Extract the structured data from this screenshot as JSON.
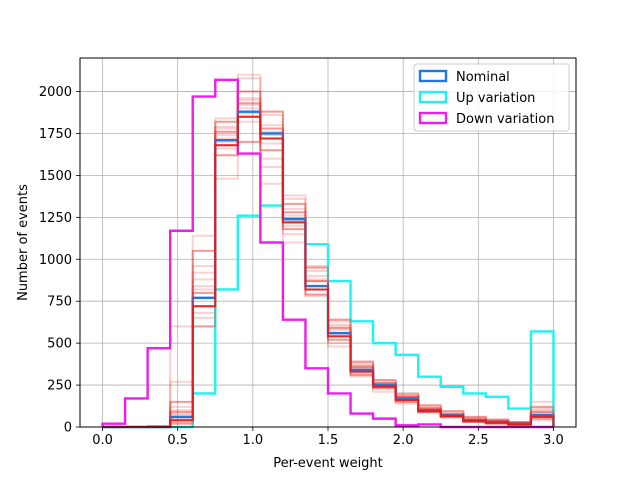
{
  "chart_data": {
    "type": "histogram-step",
    "xlabel": "Per-event weight",
    "ylabel": "Number of events",
    "xlim": [
      -0.15,
      3.15
    ],
    "ylim": [
      0,
      2200
    ],
    "x_ticks": [
      0.0,
      0.5,
      1.0,
      1.5,
      2.0,
      2.5,
      3.0
    ],
    "x_tick_labels": [
      "0.0",
      "0.5",
      "1.0",
      "1.5",
      "2.0",
      "2.5",
      "3.0"
    ],
    "y_ticks": [
      0,
      250,
      500,
      750,
      1000,
      1250,
      1500,
      1750,
      2000
    ],
    "y_tick_labels": [
      "0",
      "250",
      "500",
      "750",
      "1000",
      "1250",
      "1500",
      "1750",
      "2000"
    ],
    "grid": true,
    "legend_position": "top-right",
    "bin_edges": [
      0.0,
      0.15,
      0.3,
      0.45,
      0.6,
      0.75,
      0.9,
      1.05,
      1.2,
      1.35,
      1.5,
      1.65,
      1.8,
      1.95,
      2.1,
      2.25,
      2.4,
      2.55,
      2.7,
      2.85,
      3.0
    ],
    "series": [
      {
        "name": "Nominal",
        "color": "#1f77e0",
        "values": [
          0,
          0,
          0,
          60,
          770,
          1710,
          1880,
          1750,
          1240,
          840,
          560,
          340,
          250,
          170,
          100,
          70,
          40,
          30,
          20,
          70
        ]
      },
      {
        "name": "Up variation",
        "color": "#1ff2f2",
        "values": [
          0,
          0,
          0,
          0,
          200,
          820,
          1260,
          1320,
          1240,
          1090,
          870,
          630,
          500,
          430,
          300,
          240,
          200,
          180,
          110,
          570
        ]
      },
      {
        "name": "Down variation",
        "color": "#ee1cee",
        "values": [
          20,
          170,
          470,
          1170,
          1970,
          2070,
          1630,
          1100,
          640,
          350,
          200,
          80,
          50,
          10,
          15,
          0,
          0,
          0,
          0,
          0
        ]
      }
    ],
    "variation_color": "#e8302a",
    "variations": [
      [
        0,
        0,
        0,
        90,
        800,
        1760,
        1930,
        1780,
        1280,
        870,
        590,
        360,
        260,
        180,
        110,
        75,
        45,
        35,
        25,
        90
      ],
      [
        0,
        0,
        0,
        40,
        720,
        1680,
        1850,
        1720,
        1220,
        820,
        540,
        330,
        240,
        160,
        95,
        65,
        35,
        25,
        15,
        60
      ],
      [
        0,
        0,
        5,
        150,
        1050,
        1820,
        1700,
        1880,
        1330,
        950,
        640,
        390,
        280,
        200,
        130,
        95,
        60,
        45,
        30,
        120
      ],
      [
        0,
        0,
        0,
        20,
        600,
        1620,
        2000,
        1650,
        1180,
        790,
        520,
        310,
        230,
        150,
        90,
        60,
        30,
        20,
        10,
        50
      ],
      [
        0,
        0,
        0,
        120,
        960,
        1780,
        1920,
        1550,
        1360,
        900,
        610,
        380,
        270,
        190,
        120,
        85,
        55,
        40,
        25,
        110
      ],
      [
        0,
        0,
        0,
        70,
        880,
        1740,
        1820,
        1800,
        1150,
        960,
        500,
        350,
        250,
        170,
        105,
        70,
        40,
        30,
        20,
        80
      ],
      [
        0,
        0,
        0,
        270,
        1140,
        1840,
        2080,
        1600,
        1200,
        780,
        480,
        300,
        210,
        140,
        85,
        55,
        30,
        20,
        15,
        40
      ],
      [
        0,
        0,
        0,
        30,
        650,
        1660,
        1960,
        1760,
        1380,
        930,
        630,
        370,
        260,
        185,
        115,
        80,
        50,
        35,
        20,
        150
      ],
      [
        0,
        0,
        0,
        100,
        920,
        1700,
        1870,
        1860,
        1100,
        820,
        560,
        340,
        250,
        175,
        100,
        70,
        45,
        30,
        20,
        100
      ],
      [
        0,
        0,
        0,
        600,
        820,
        1480,
        2100,
        1450,
        1260,
        870,
        550,
        320,
        240,
        160,
        90,
        60,
        40,
        25,
        15,
        60
      ],
      [
        0,
        0,
        0,
        50,
        680,
        1790,
        1900,
        1740,
        1300,
        840,
        580,
        360,
        260,
        180,
        110,
        75,
        45,
        35,
        25,
        70
      ],
      [
        0,
        0,
        0,
        80,
        840,
        1720,
        1950,
        1690,
        1230,
        880,
        600,
        350,
        255,
        165,
        105,
        70,
        40,
        30,
        20,
        85
      ]
    ]
  }
}
